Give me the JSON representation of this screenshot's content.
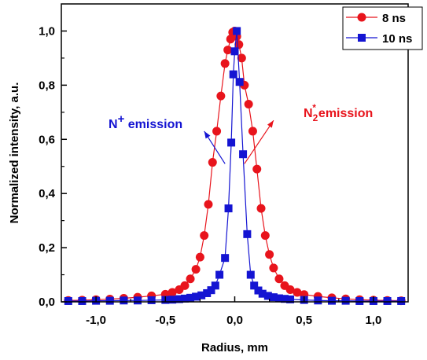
{
  "chart_data": {
    "type": "scatter",
    "xlabel": "Radius, mm",
    "ylabel": "Normalized intensity, a.u.",
    "xlim": [
      -1.25,
      1.25
    ],
    "ylim": [
      0,
      1.1
    ],
    "x_ticks": [
      -1.0,
      -0.5,
      0.0,
      0.5,
      1.0
    ],
    "x_tick_labels": [
      "-1,0",
      "-0,5",
      "0,0",
      "0,5",
      "1,0"
    ],
    "y_ticks": [
      0.0,
      0.2,
      0.4,
      0.6,
      0.8,
      1.0
    ],
    "y_tick_labels": [
      "0,0",
      "0,2",
      "0,4",
      "0,6",
      "0,8",
      "1,0"
    ],
    "grid": false,
    "legend_position": "top-right",
    "series": [
      {
        "name": "8 ns",
        "color": "#e8141c",
        "marker": "circle",
        "x": [
          -1.2,
          -1.1,
          -1.0,
          -0.9,
          -0.8,
          -0.7,
          -0.6,
          -0.5,
          -0.45,
          -0.4,
          -0.36,
          -0.32,
          -0.28,
          -0.25,
          -0.22,
          -0.19,
          -0.16,
          -0.13,
          -0.1,
          -0.07,
          -0.05,
          -0.03,
          -0.015,
          0.0,
          0.015,
          0.03,
          0.05,
          0.07,
          0.1,
          0.13,
          0.16,
          0.19,
          0.22,
          0.25,
          0.28,
          0.32,
          0.36,
          0.4,
          0.45,
          0.5,
          0.6,
          0.7,
          0.8,
          0.9,
          1.0,
          1.1,
          1.2
        ],
        "y": [
          0.005,
          0.006,
          0.008,
          0.01,
          0.013,
          0.017,
          0.022,
          0.028,
          0.035,
          0.045,
          0.06,
          0.085,
          0.12,
          0.165,
          0.245,
          0.36,
          0.515,
          0.63,
          0.76,
          0.88,
          0.93,
          0.97,
          0.995,
          1.0,
          0.98,
          0.95,
          0.9,
          0.8,
          0.73,
          0.63,
          0.49,
          0.345,
          0.245,
          0.175,
          0.125,
          0.085,
          0.06,
          0.045,
          0.035,
          0.027,
          0.02,
          0.015,
          0.011,
          0.008,
          0.006,
          0.005,
          0.004
        ]
      },
      {
        "name": "10 ns",
        "color": "#1414d2",
        "marker": "square",
        "x": [
          -1.2,
          -1.1,
          -1.0,
          -0.9,
          -0.8,
          -0.7,
          -0.6,
          -0.5,
          -0.45,
          -0.4,
          -0.36,
          -0.32,
          -0.28,
          -0.24,
          -0.2,
          -0.17,
          -0.14,
          -0.11,
          -0.07,
          -0.045,
          -0.025,
          -0.01,
          0.0,
          0.015,
          0.035,
          0.06,
          0.09,
          0.115,
          0.14,
          0.17,
          0.2,
          0.24,
          0.28,
          0.32,
          0.36,
          0.4,
          0.5,
          0.6,
          0.7,
          0.8,
          0.9,
          1.0,
          1.1,
          1.2
        ],
        "y": [
          0.003,
          0.003,
          0.004,
          0.004,
          0.005,
          0.005,
          0.006,
          0.007,
          0.008,
          0.01,
          0.012,
          0.015,
          0.019,
          0.024,
          0.032,
          0.043,
          0.06,
          0.1,
          0.162,
          0.345,
          0.588,
          0.84,
          0.925,
          1.0,
          0.812,
          0.545,
          0.25,
          0.1,
          0.06,
          0.042,
          0.03,
          0.022,
          0.017,
          0.013,
          0.011,
          0.009,
          0.007,
          0.005,
          0.004,
          0.004,
          0.003,
          0.003,
          0.003,
          0.003
        ]
      }
    ],
    "annotations": [
      {
        "text_main": "N",
        "text_sup": "+",
        "text_rest": " emission",
        "color": "#1414d2",
        "arrow_from": [
          -0.07,
          0.51
        ],
        "arrow_to": [
          -0.22,
          0.63
        ]
      },
      {
        "text_main": "N",
        "text_sub": "2",
        "text_sup": "*",
        "text_rest": "emission",
        "color": "#e8141c",
        "arrow_from": [
          0.07,
          0.51
        ],
        "arrow_to": [
          0.28,
          0.67
        ]
      }
    ]
  }
}
